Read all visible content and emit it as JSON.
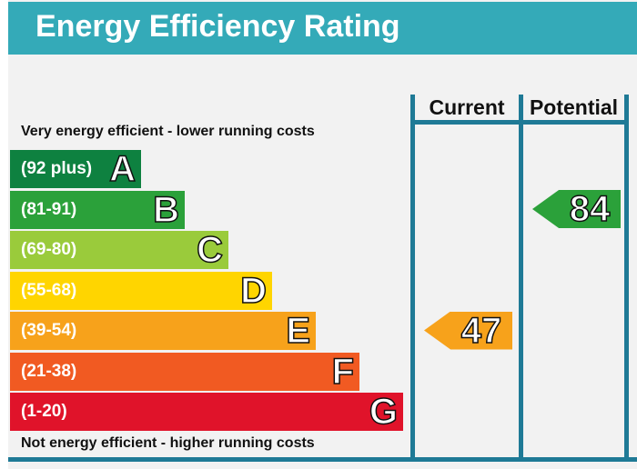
{
  "title": "Energy Efficiency Rating",
  "columns": {
    "current": "Current",
    "potential": "Potential"
  },
  "captions": {
    "top": "Very energy efficient - lower running costs",
    "bottom": "Not energy efficient - higher running costs"
  },
  "chart_data": {
    "type": "bar",
    "title": "Energy Efficiency Rating",
    "categories": [
      "A",
      "B",
      "C",
      "D",
      "E",
      "F",
      "G"
    ],
    "bands": [
      {
        "letter": "A",
        "range": "(92 plus)",
        "min": 92,
        "max": null,
        "color": "#0e8140"
      },
      {
        "letter": "B",
        "range": "(81-91)",
        "min": 81,
        "max": 91,
        "color": "#2ba13a"
      },
      {
        "letter": "C",
        "range": "(69-80)",
        "min": 69,
        "max": 80,
        "color": "#9acb3b"
      },
      {
        "letter": "D",
        "range": "(55-68)",
        "min": 55,
        "max": 68,
        "color": "#ffd500"
      },
      {
        "letter": "E",
        "range": "(39-54)",
        "min": 39,
        "max": 54,
        "color": "#f7a21b"
      },
      {
        "letter": "F",
        "range": "(21-38)",
        "min": 21,
        "max": 38,
        "color": "#f15a22"
      },
      {
        "letter": "G",
        "range": "(1-20)",
        "min": 1,
        "max": 20,
        "color": "#e0132a"
      }
    ],
    "ratings": {
      "current": {
        "value": 47,
        "band": "E",
        "color": "#f7a21b"
      },
      "potential": {
        "value": 84,
        "band": "B",
        "color": "#2ba13a"
      }
    }
  }
}
